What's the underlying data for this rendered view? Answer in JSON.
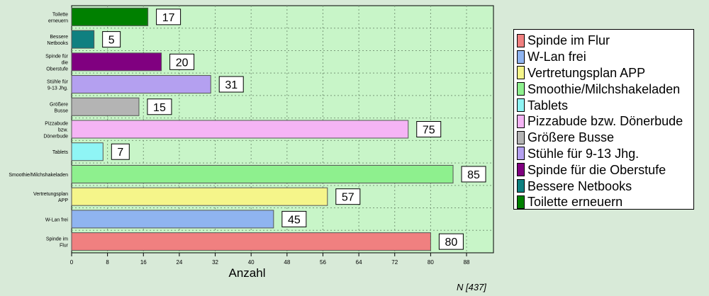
{
  "chart_data": {
    "type": "bar",
    "orientation": "horizontal",
    "categories": [
      "Spinde im Flur",
      "W-Lan frei",
      "Vertretungsplan APP",
      "Smoothie/Milchshakeladen",
      "Tablets",
      "Pizzabude bzw. Dönerbude",
      "Größere Busse",
      "Stühle für 9-13 Jhg.",
      "Spinde für die Oberstufe",
      "Bessere Netbooks",
      "Toilette erneuern"
    ],
    "axis_labels": [
      "Spinde im\nFlur",
      "W-Lan frei",
      "Vertretungsplan\nAPP",
      "Smoothie/Milchshakeladen",
      "Tablets",
      "Pizzabude\nbzw.\nDönerbude",
      "Größere\nBusse",
      "Stühle für\n9-13 Jhg.",
      "Spinde für\ndie\nOberstufe",
      "Bessere\nNetbooks",
      "Toilette\nerneuern"
    ],
    "values": [
      80,
      45,
      57,
      85,
      7,
      75,
      15,
      31,
      20,
      5,
      17
    ],
    "colors": [
      "#f08080",
      "#8fb4f0",
      "#f5f58a",
      "#8ef08e",
      "#8ff5f5",
      "#f5b4f5",
      "#b4b4b4",
      "#b4a0f0",
      "#800080",
      "#0f8080",
      "#008000"
    ],
    "xlabel": "Anzahl",
    "xlim": [
      0,
      94
    ],
    "xticks": [
      0,
      8,
      16,
      24,
      32,
      40,
      48,
      56,
      64,
      72,
      80,
      88
    ],
    "grid": true,
    "plot_background": "#c8f5c8",
    "legend_position": "right",
    "legend": [
      "Spinde im Flur",
      "W-Lan frei",
      "Vertretungsplan APP",
      "Smoothie/Milchshakeladen",
      "Tablets",
      "Pizzabude bzw. Dönerbude",
      "Größere Busse",
      "Stühle für 9-13 Jhg.",
      "Spinde für die Oberstufe",
      "Bessere Netbooks",
      "Toilette erneuern"
    ]
  },
  "footer_note": "N [437]"
}
